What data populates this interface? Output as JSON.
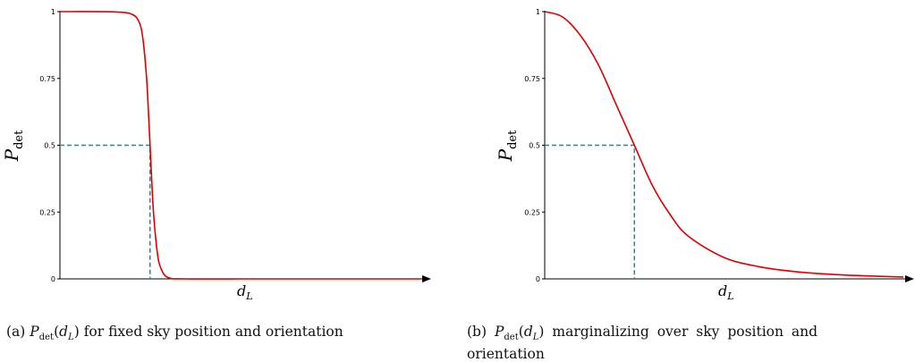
{
  "chart_data": [
    {
      "panel": "a",
      "type": "line",
      "ylabel_main": "P",
      "ylabel_sub": "det",
      "xlabel_main": "d",
      "xlabel_sub": "L",
      "yticks": [
        "0",
        "0.25",
        "0.5",
        "0.75",
        "1"
      ],
      "ylim": [
        0,
        1
      ],
      "series": [
        {
          "color": "#e00000",
          "x": [
            0.0,
            0.15,
            0.2,
            0.22,
            0.23,
            0.24,
            0.245,
            0.25,
            0.255,
            0.26,
            0.27,
            0.28,
            0.3,
            0.35,
            0.5,
            0.75,
            1.0
          ],
          "y": [
            1.0,
            0.999,
            0.99,
            0.96,
            0.9,
            0.76,
            0.64,
            0.5,
            0.36,
            0.24,
            0.1,
            0.04,
            0.005,
            0.0,
            0.0,
            0.0,
            0.0
          ]
        }
      ],
      "reference": {
        "x": 0.25,
        "y": 0.5,
        "color": "#2f7fb0"
      },
      "caption": {
        "label": "(a)",
        "text": "for fixed sky position and orientation"
      }
    },
    {
      "panel": "b",
      "type": "line",
      "ylabel_main": "P",
      "ylabel_sub": "det",
      "xlabel_main": "d",
      "xlabel_sub": "L",
      "yticks": [
        "0",
        "0.25",
        "0.5",
        "0.75",
        "1"
      ],
      "ylim": [
        0,
        1
      ],
      "series": [
        {
          "color": "#e00000",
          "x": [
            0.0,
            0.05,
            0.1,
            0.15,
            0.2,
            0.25,
            0.3,
            0.35,
            0.4,
            0.5,
            0.6,
            0.7,
            0.8,
            0.9,
            1.0
          ],
          "y": [
            1.0,
            0.98,
            0.91,
            0.8,
            0.65,
            0.5,
            0.35,
            0.24,
            0.16,
            0.08,
            0.045,
            0.027,
            0.017,
            0.011,
            0.007
          ]
        }
      ],
      "reference": {
        "x": 0.25,
        "y": 0.5,
        "color": "#2f7fb0"
      },
      "caption": {
        "label": "(b)",
        "text_line1": "marginalizing over sky position and",
        "text_line2": "orientation"
      }
    }
  ],
  "captions": {
    "a_label": "(a)",
    "a_text": "for fixed sky position and orientation",
    "b_label": "(b)",
    "b_text1": "marginalizing over sky position and",
    "b_text2": "orientation",
    "pdet": "P",
    "pdet_sub": "det",
    "arg": "d",
    "arg_sub": "L"
  }
}
